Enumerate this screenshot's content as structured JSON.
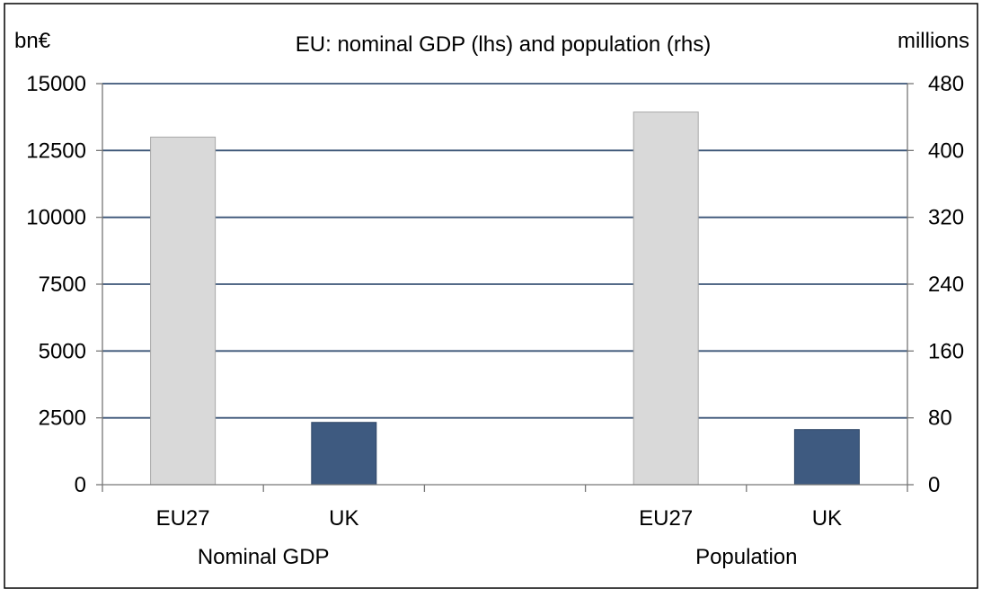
{
  "chart_data": {
    "type": "bar",
    "title": "EU: nominal GDP (lhs) and population (rhs)",
    "left_axis_unit": "bn€",
    "right_axis_unit": "millions",
    "left_axis": {
      "ylim": [
        0,
        15000
      ],
      "ticks": [
        0,
        2500,
        5000,
        7500,
        10000,
        12500,
        15000
      ]
    },
    "right_axis": {
      "ylim": [
        0,
        480
      ],
      "ticks": [
        0,
        80,
        160,
        240,
        320,
        400,
        480
      ]
    },
    "grid": true,
    "groups": [
      {
        "label": "Nominal GDP",
        "axis": "left",
        "bars": [
          {
            "category": "EU27",
            "value": 13000,
            "color": "#d9d9d9"
          },
          {
            "category": "UK",
            "value": 2330,
            "color": "#3e5a80"
          }
        ]
      },
      {
        "label": "Population",
        "axis": "right",
        "bars": [
          {
            "category": "EU27",
            "value": 446,
            "color": "#d9d9d9"
          },
          {
            "category": "UK",
            "value": 66,
            "color": "#3e5a80"
          }
        ]
      }
    ]
  }
}
